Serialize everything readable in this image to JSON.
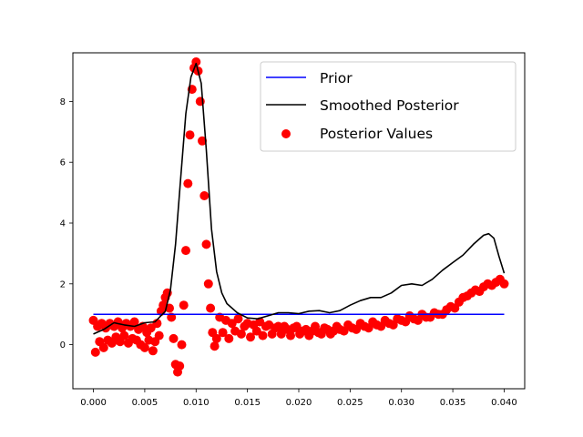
{
  "chart_data": {
    "type": "line",
    "title": "",
    "xlabel": "",
    "ylabel": "",
    "xlim": [
      -0.002,
      0.042
    ],
    "ylim": [
      -1.45,
      9.6
    ],
    "xticks": [
      0.0,
      0.005,
      0.01,
      0.015,
      0.02,
      0.025,
      0.03,
      0.035,
      0.04
    ],
    "xtick_labels": [
      "0.000",
      "0.005",
      "0.010",
      "0.015",
      "0.020",
      "0.025",
      "0.030",
      "0.035",
      "0.040"
    ],
    "yticks": [
      0,
      2,
      4,
      6,
      8
    ],
    "ytick_labels": [
      "0",
      "2",
      "4",
      "6",
      "8"
    ],
    "grid": false,
    "legend_position": "top-right",
    "legend": [
      "Prior",
      "Smoothed Posterior",
      "Posterior Values"
    ],
    "colors": {
      "prior": "#0000ff",
      "smoothed": "#000000",
      "scatter": "#ff0000"
    },
    "series": [
      {
        "name": "Prior",
        "kind": "line",
        "x": [
          0.0,
          0.04
        ],
        "y": [
          1.0,
          1.0
        ]
      },
      {
        "name": "Smoothed Posterior",
        "kind": "line",
        "x": [
          0.0,
          0.001,
          0.002,
          0.003,
          0.004,
          0.005,
          0.006,
          0.007,
          0.0075,
          0.008,
          0.0085,
          0.009,
          0.0095,
          0.01,
          0.0105,
          0.011,
          0.0115,
          0.012,
          0.0125,
          0.013,
          0.014,
          0.015,
          0.016,
          0.017,
          0.018,
          0.019,
          0.02,
          0.021,
          0.022,
          0.023,
          0.024,
          0.025,
          0.026,
          0.027,
          0.028,
          0.029,
          0.03,
          0.031,
          0.032,
          0.033,
          0.034,
          0.035,
          0.036,
          0.037,
          0.038,
          0.0385,
          0.039,
          0.0395,
          0.04
        ],
        "y": [
          0.35,
          0.5,
          0.72,
          0.65,
          0.6,
          0.72,
          0.75,
          1.1,
          1.8,
          3.3,
          5.5,
          7.6,
          8.8,
          9.25,
          8.6,
          6.4,
          3.8,
          2.4,
          1.7,
          1.35,
          1.05,
          0.88,
          0.85,
          0.95,
          1.05,
          1.05,
          1.02,
          1.1,
          1.12,
          1.05,
          1.12,
          1.3,
          1.45,
          1.55,
          1.55,
          1.7,
          1.95,
          2.0,
          1.95,
          2.15,
          2.45,
          2.7,
          2.95,
          3.3,
          3.6,
          3.65,
          3.5,
          2.9,
          2.35
        ]
      },
      {
        "name": "Posterior Values",
        "kind": "scatter",
        "x": [
          0.0,
          0.0002,
          0.0004,
          0.0006,
          0.0008,
          0.001,
          0.0012,
          0.0014,
          0.0016,
          0.0018,
          0.002,
          0.0022,
          0.0024,
          0.0026,
          0.0028,
          0.003,
          0.0032,
          0.0034,
          0.0036,
          0.0038,
          0.004,
          0.0042,
          0.0044,
          0.0046,
          0.0048,
          0.005,
          0.0052,
          0.0054,
          0.0056,
          0.0058,
          0.006,
          0.0062,
          0.0064,
          0.0066,
          0.0068,
          0.007,
          0.0072,
          0.0074,
          0.0076,
          0.0078,
          0.008,
          0.0082,
          0.0084,
          0.0086,
          0.0088,
          0.009,
          0.0092,
          0.0094,
          0.0096,
          0.0098,
          0.01,
          0.0102,
          0.0104,
          0.0106,
          0.0108,
          0.011,
          0.0112,
          0.0114,
          0.0116,
          0.0118,
          0.012,
          0.0123,
          0.0126,
          0.0129,
          0.0132,
          0.0135,
          0.0138,
          0.0141,
          0.0144,
          0.0147,
          0.015,
          0.0153,
          0.0156,
          0.0159,
          0.0162,
          0.0165,
          0.0168,
          0.0171,
          0.0174,
          0.0177,
          0.018,
          0.0183,
          0.0186,
          0.0189,
          0.0192,
          0.0195,
          0.0198,
          0.0201,
          0.0204,
          0.0207,
          0.021,
          0.0213,
          0.0216,
          0.0219,
          0.0222,
          0.0225,
          0.0228,
          0.0231,
          0.0234,
          0.0237,
          0.024,
          0.0244,
          0.0248,
          0.0252,
          0.0256,
          0.026,
          0.0264,
          0.0268,
          0.0272,
          0.0276,
          0.028,
          0.0284,
          0.0288,
          0.0292,
          0.0296,
          0.03,
          0.0304,
          0.0308,
          0.0312,
          0.0316,
          0.032,
          0.0324,
          0.0328,
          0.0332,
          0.0336,
          0.034,
          0.0344,
          0.0348,
          0.0352,
          0.0356,
          0.036,
          0.0364,
          0.0368,
          0.0372,
          0.0376,
          0.038,
          0.0384,
          0.0388,
          0.0392,
          0.0396,
          0.04
        ],
        "y": [
          0.8,
          -0.25,
          0.6,
          0.1,
          0.7,
          -0.1,
          0.55,
          0.15,
          0.7,
          0.05,
          0.6,
          0.25,
          0.75,
          0.1,
          0.55,
          0.3,
          0.7,
          0.05,
          0.6,
          0.2,
          0.75,
          0.15,
          0.5,
          0.0,
          0.6,
          -0.1,
          0.4,
          0.15,
          0.55,
          -0.2,
          0.1,
          0.7,
          0.3,
          1.1,
          1.3,
          1.55,
          1.7,
          1.2,
          0.9,
          0.2,
          -0.65,
          -0.9,
          -0.7,
          0.0,
          1.3,
          3.1,
          5.3,
          6.9,
          8.4,
          9.1,
          9.3,
          9.0,
          8.0,
          6.7,
          4.9,
          3.3,
          2.0,
          1.2,
          0.4,
          -0.05,
          0.2,
          0.9,
          0.4,
          0.8,
          0.2,
          0.7,
          0.45,
          0.85,
          0.35,
          0.6,
          0.7,
          0.25,
          0.65,
          0.45,
          0.75,
          0.3,
          0.6,
          0.65,
          0.35,
          0.55,
          0.6,
          0.35,
          0.6,
          0.5,
          0.3,
          0.55,
          0.6,
          0.35,
          0.45,
          0.5,
          0.3,
          0.45,
          0.6,
          0.4,
          0.35,
          0.55,
          0.5,
          0.35,
          0.45,
          0.6,
          0.5,
          0.45,
          0.65,
          0.55,
          0.5,
          0.7,
          0.6,
          0.55,
          0.75,
          0.65,
          0.6,
          0.8,
          0.7,
          0.65,
          0.85,
          0.8,
          0.75,
          0.95,
          0.85,
          0.8,
          1.0,
          0.9,
          0.9,
          1.05,
          1.0,
          1.0,
          1.15,
          1.25,
          1.2,
          1.4,
          1.55,
          1.6,
          1.7,
          1.8,
          1.75,
          1.9,
          2.0,
          1.95,
          2.05,
          2.15,
          2.0
        ]
      }
    ]
  }
}
